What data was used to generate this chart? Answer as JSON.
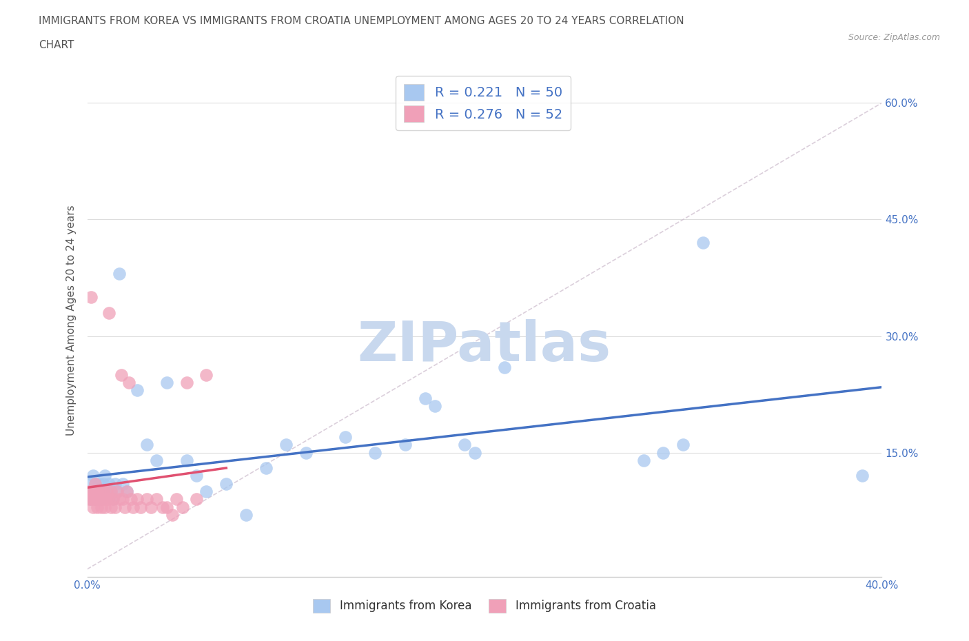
{
  "title_line1": "IMMIGRANTS FROM KOREA VS IMMIGRANTS FROM CROATIA UNEMPLOYMENT AMONG AGES 20 TO 24 YEARS CORRELATION",
  "title_line2": "CHART",
  "source": "Source: ZipAtlas.com",
  "ylabel": "Unemployment Among Ages 20 to 24 years",
  "xlim": [
    0.0,
    0.4
  ],
  "ylim": [
    -0.01,
    0.65
  ],
  "xticks": [
    0.0,
    0.05,
    0.1,
    0.15,
    0.2,
    0.25,
    0.3,
    0.35,
    0.4
  ],
  "xticklabels": [
    "0.0%",
    "",
    "",
    "",
    "",
    "",
    "",
    "",
    "40.0%"
  ],
  "yticks": [
    0.0,
    0.15,
    0.3,
    0.45,
    0.6
  ],
  "yticklabels_right": [
    "",
    "15.0%",
    "30.0%",
    "45.0%",
    "60.0%"
  ],
  "korea_color": "#a8c8f0",
  "croatia_color": "#f0a0b8",
  "korea_line_color": "#4472c4",
  "croatia_line_color": "#e05070",
  "korea_R": 0.221,
  "korea_N": 50,
  "croatia_R": 0.276,
  "croatia_N": 52,
  "watermark": "ZIPatlas",
  "watermark_color": "#c8d8ee",
  "legend_korea_label": "Immigrants from Korea",
  "legend_croatia_label": "Immigrants from Croatia",
  "korea_x": [
    0.001,
    0.002,
    0.002,
    0.003,
    0.003,
    0.004,
    0.004,
    0.005,
    0.005,
    0.006,
    0.006,
    0.007,
    0.007,
    0.008,
    0.008,
    0.009,
    0.01,
    0.011,
    0.012,
    0.013,
    0.014,
    0.015,
    0.016,
    0.018,
    0.02,
    0.025,
    0.03,
    0.035,
    0.04,
    0.05,
    0.055,
    0.06,
    0.07,
    0.08,
    0.09,
    0.1,
    0.11,
    0.13,
    0.145,
    0.16,
    0.17,
    0.175,
    0.19,
    0.195,
    0.21,
    0.28,
    0.29,
    0.3,
    0.31,
    0.39
  ],
  "korea_y": [
    0.1,
    0.09,
    0.11,
    0.1,
    0.12,
    0.09,
    0.11,
    0.1,
    0.09,
    0.1,
    0.11,
    0.1,
    0.09,
    0.11,
    0.1,
    0.12,
    0.1,
    0.11,
    0.1,
    0.09,
    0.11,
    0.1,
    0.38,
    0.11,
    0.1,
    0.23,
    0.16,
    0.14,
    0.24,
    0.14,
    0.12,
    0.1,
    0.11,
    0.07,
    0.13,
    0.16,
    0.15,
    0.17,
    0.15,
    0.16,
    0.22,
    0.21,
    0.16,
    0.15,
    0.26,
    0.14,
    0.15,
    0.16,
    0.42,
    0.12
  ],
  "croatia_x": [
    0.001,
    0.001,
    0.002,
    0.002,
    0.002,
    0.003,
    0.003,
    0.003,
    0.004,
    0.004,
    0.004,
    0.005,
    0.005,
    0.005,
    0.006,
    0.006,
    0.007,
    0.007,
    0.008,
    0.008,
    0.009,
    0.009,
    0.01,
    0.01,
    0.011,
    0.011,
    0.012,
    0.012,
    0.013,
    0.014,
    0.015,
    0.016,
    0.017,
    0.018,
    0.019,
    0.02,
    0.021,
    0.022,
    0.023,
    0.025,
    0.027,
    0.03,
    0.032,
    0.035,
    0.038,
    0.04,
    0.043,
    0.045,
    0.048,
    0.05,
    0.055,
    0.06
  ],
  "croatia_y": [
    0.1,
    0.09,
    0.35,
    0.09,
    0.1,
    0.1,
    0.09,
    0.08,
    0.09,
    0.1,
    0.11,
    0.09,
    0.1,
    0.08,
    0.09,
    0.1,
    0.09,
    0.08,
    0.1,
    0.09,
    0.09,
    0.08,
    0.1,
    0.09,
    0.33,
    0.09,
    0.08,
    0.1,
    0.09,
    0.08,
    0.1,
    0.09,
    0.25,
    0.09,
    0.08,
    0.1,
    0.24,
    0.09,
    0.08,
    0.09,
    0.08,
    0.09,
    0.08,
    0.09,
    0.08,
    0.08,
    0.07,
    0.09,
    0.08,
    0.24,
    0.09,
    0.25
  ]
}
